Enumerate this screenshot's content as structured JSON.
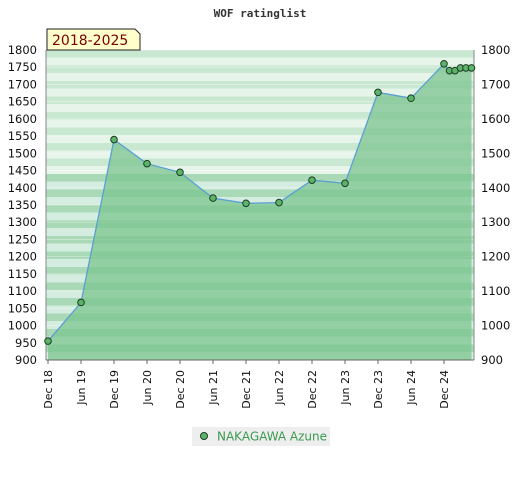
{
  "chart_data": {
    "type": "area",
    "title": "WOF ratinglist",
    "period": "2018-2025",
    "ylim": [
      900,
      1800
    ],
    "yticks": [
      900,
      950,
      1000,
      1050,
      1100,
      1150,
      1200,
      1250,
      1300,
      1350,
      1400,
      1450,
      1500,
      1550,
      1600,
      1650,
      1700,
      1750,
      1800
    ],
    "yticks_right": [
      900,
      1000,
      1100,
      1200,
      1300,
      1400,
      1500,
      1600,
      1700,
      1800
    ],
    "x_tick_labels": [
      "Dec 18",
      "Jun 19",
      "Dec 19",
      "Jun 20",
      "Dec 20",
      "Jun 21",
      "Dec 21",
      "Jun 22",
      "Dec 22",
      "Jun 23",
      "Dec 23",
      "Jun 24",
      "Dec 24"
    ],
    "series": [
      {
        "name": "NAKAGAWA Azune",
        "points": [
          {
            "x": "2018-12",
            "y": 955
          },
          {
            "x": "2019-06",
            "y": 1067
          },
          {
            "x": "2019-12",
            "y": 1540
          },
          {
            "x": "2020-06",
            "y": 1470
          },
          {
            "x": "2020-12",
            "y": 1445
          },
          {
            "x": "2021-06",
            "y": 1370
          },
          {
            "x": "2021-12",
            "y": 1355
          },
          {
            "x": "2022-06",
            "y": 1357
          },
          {
            "x": "2022-12",
            "y": 1422
          },
          {
            "x": "2023-06",
            "y": 1413
          },
          {
            "x": "2023-12",
            "y": 1677
          },
          {
            "x": "2024-06",
            "y": 1660
          },
          {
            "x": "2024-12",
            "y": 1760
          },
          {
            "x": "2025-01",
            "y": 1740
          },
          {
            "x": "2025-02",
            "y": 1740
          },
          {
            "x": "2025-03",
            "y": 1748
          },
          {
            "x": "2025-04",
            "y": 1748
          },
          {
            "x": "2025-05",
            "y": 1748
          }
        ]
      }
    ],
    "colors": {
      "area_fill": "#7cc48f",
      "line": "#5a9fd4",
      "marker_fill": "#5cb36a",
      "marker_stroke": "#1d3d22",
      "legend_bg": "#eeeeee",
      "legend_text": "#3a9a50",
      "badge_bg": "#ffffcc",
      "badge_text": "#7a0000"
    },
    "grid": true,
    "legend_position": "bottom"
  }
}
